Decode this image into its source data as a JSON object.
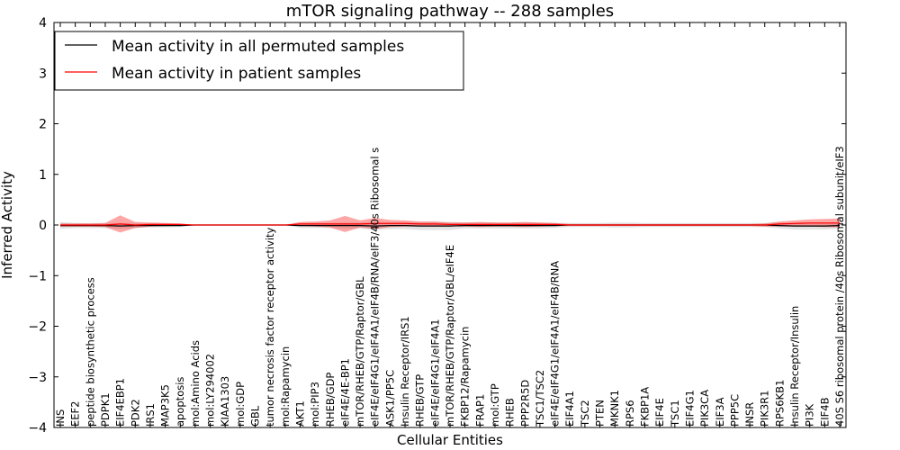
{
  "chart_data": {
    "type": "line",
    "title": "mTOR signaling pathway -- 288 samples",
    "xlabel": "Cellular Entities",
    "ylabel": "Inferred Activity",
    "ylim": [
      -4,
      4
    ],
    "yticks": [
      "−4",
      "−3",
      "−2",
      "−1",
      "0",
      "1",
      "2",
      "3",
      "4"
    ],
    "legend": {
      "placement": "top-left",
      "entries": [
        {
          "label": "Mean activity in all permuted samples",
          "color": "#000000"
        },
        {
          "label": "Mean activity in patient samples",
          "color": "#ff0000"
        }
      ]
    },
    "categories": [
      "INS",
      "EEF2",
      "peptide biosynthetic process",
      "PDPK1",
      "EIF4EBP1",
      "PDK2",
      "IRS1",
      "MAP3K5",
      "apoptosis",
      "mol:Amino Acids",
      "mol:LY294002",
      "KIAA1303",
      "mol:GDP",
      "GBL",
      "tumor necrosis factor receptor activity",
      "mol:Rapamycin",
      "AKT1",
      "mol:PIP3",
      "RHEB/GDP",
      "eIF4E/4E-BP1",
      "mTOR/RHEB/GTP/Raptor/GBL",
      "eIF4E/eIF4G1/eIF4A1/eIF4B/RNA/eIF3/40s Ribosomal s",
      "ASK1/PP5C",
      "Insulin Receptor/IRS1",
      "RHEB/GTP",
      "eIF4E/eIF4G1/eIF4A1",
      "mTOR/RHEB/GTP/Raptor/GBL/eIF4E",
      "FKBP12/Rapamycin",
      "FRAP1",
      "mol:GTP",
      "RHEB",
      "PPP2R5D",
      "TSC1/TSC2",
      "eIF4E/eIF4G1/eIF4A1/eIF4B/RNA",
      "EIF4A1",
      "TSC2",
      "PTEN",
      "MKNK1",
      "RPS6",
      "FKBP1A",
      "EIF4E",
      "TSC1",
      "EIF4G1",
      "PIK3CA",
      "EIF3A",
      "PPP5C",
      "INSR",
      "PIK3R1",
      "RPS6KB1",
      "Insulin Receptor/Insulin",
      "PI3K",
      "EIF4B",
      "40S S6 ribosomal protein /40s Ribosomal subunit/eIF3"
    ],
    "series": [
      {
        "name": "Mean activity in all permuted samples",
        "color": "#000000",
        "values": [
          -0.01,
          -0.01,
          -0.01,
          -0.01,
          -0.02,
          -0.01,
          -0.01,
          -0.01,
          -0.01,
          0,
          0,
          0,
          0,
          0,
          0,
          0,
          -0.01,
          -0.01,
          -0.01,
          -0.01,
          -0.01,
          -0.02,
          -0.01,
          -0.01,
          -0.02,
          -0.02,
          -0.02,
          -0.01,
          -0.01,
          -0.01,
          -0.01,
          -0.01,
          -0.01,
          -0.01,
          0,
          0,
          0,
          0,
          0,
          0,
          0,
          0,
          0,
          0,
          0,
          0,
          0,
          0,
          -0.01,
          -0.02,
          -0.02,
          -0.02,
          -0.01
        ],
        "band": [
          0.07,
          0.05,
          0.05,
          0.05,
          0.06,
          0.05,
          0.04,
          0.04,
          0.03,
          0,
          0,
          0,
          0,
          0,
          0,
          0,
          0.05,
          0.05,
          0.05,
          0.06,
          0.06,
          0.08,
          0.07,
          0.07,
          0.08,
          0.08,
          0.08,
          0.06,
          0.06,
          0.06,
          0.06,
          0.06,
          0.06,
          0.05,
          0.04,
          0.04,
          0.04,
          0.05,
          0.05,
          0.04,
          0.04,
          0.04,
          0.04,
          0.04,
          0.04,
          0.04,
          0.04,
          0.04,
          0.06,
          0.07,
          0.07,
          0.07,
          0.06
        ]
      },
      {
        "name": "Mean activity in patient samples",
        "color": "#ff0000",
        "values": [
          0,
          0,
          0,
          0,
          0.02,
          0,
          0.01,
          0.01,
          0.01,
          0,
          0,
          0,
          0,
          0,
          0,
          0,
          0.02,
          0.02,
          0.02,
          0.02,
          0.02,
          0.03,
          0.03,
          0.03,
          0.02,
          0.02,
          0.01,
          0.01,
          0.01,
          0.01,
          0.01,
          0.01,
          0.01,
          0.01,
          0,
          0,
          0,
          0,
          0,
          0,
          0,
          0,
          0,
          0,
          0,
          0,
          0,
          0,
          0.02,
          0.03,
          0.04,
          0.04,
          0.04
        ],
        "band": [
          0.03,
          0.03,
          0.03,
          0.04,
          0.17,
          0.06,
          0.04,
          0.03,
          0.02,
          0,
          0,
          0,
          0,
          0,
          0,
          0,
          0.04,
          0.05,
          0.07,
          0.16,
          0.07,
          0.11,
          0.07,
          0.06,
          0.05,
          0.05,
          0.04,
          0.04,
          0.05,
          0.04,
          0.04,
          0.05,
          0.04,
          0.03,
          0.02,
          0.02,
          0.02,
          0.02,
          0.02,
          0.02,
          0.02,
          0.02,
          0.02,
          0.02,
          0.02,
          0.02,
          0.02,
          0.03,
          0.05,
          0.06,
          0.07,
          0.08,
          0.09
        ]
      }
    ]
  }
}
